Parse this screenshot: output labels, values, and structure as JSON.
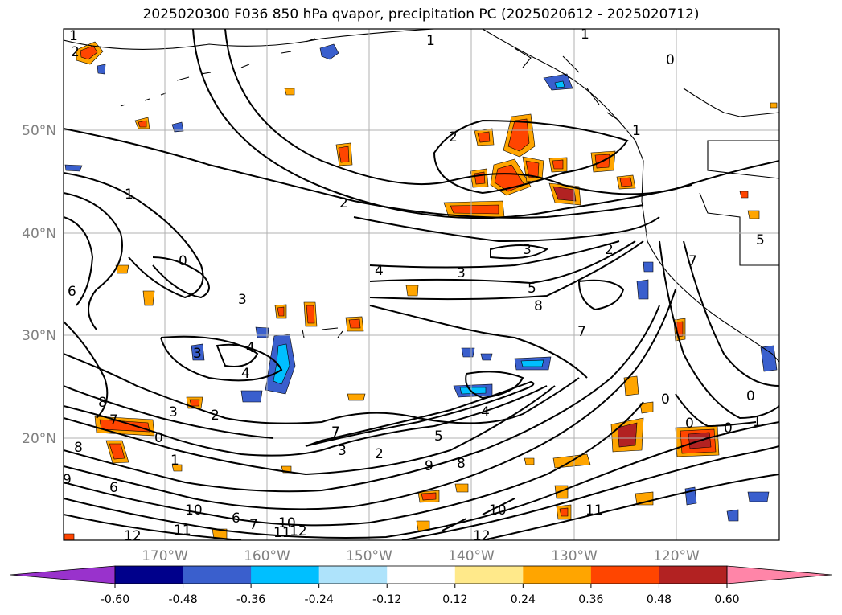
{
  "title": "2025020300 F036 850 hPa qvapor, precipitation PC (2025020612 - 2025020712)",
  "map": {
    "lon_labels": [
      "170°W",
      "160°W",
      "150°W",
      "140°W",
      "130°W",
      "120°W"
    ],
    "lat_labels": [
      "50°N",
      "40°N",
      "30°N",
      "20°N"
    ],
    "gridlines": true
  },
  "contours": {
    "field": "850 hPa qvapor",
    "labels": [
      "1",
      "2",
      "1",
      "1",
      "0",
      "2",
      "2",
      "1",
      "2",
      "3",
      "4",
      "3",
      "3",
      "5",
      "8",
      "7",
      "6",
      "0",
      "3",
      "4",
      "4",
      "8",
      "3",
      "2",
      "7",
      "7",
      "0",
      "3",
      "2",
      "1",
      "8",
      "9",
      "8",
      "9",
      "7",
      "4",
      "5",
      "6",
      "0",
      "0",
      "0",
      "1",
      "7",
      "5",
      "10",
      "11",
      "12",
      "6",
      "7",
      "10",
      "11",
      "12",
      "12",
      "10",
      "11",
      "0",
      "1"
    ]
  },
  "colorbar": {
    "ticks": [
      "-0.60",
      "-0.48",
      "-0.36",
      "-0.24",
      "-0.12",
      "0.12",
      "0.24",
      "0.36",
      "0.48",
      "0.60"
    ],
    "colors": [
      "#9932cc",
      "#00008b",
      "#3a5fcd",
      "#00bfff",
      "#aee3fb",
      "#ffffff",
      "#ffe98a",
      "#ffa500",
      "#ff4500",
      "#b22222",
      "#ff85a8"
    ],
    "extend": "both"
  }
}
